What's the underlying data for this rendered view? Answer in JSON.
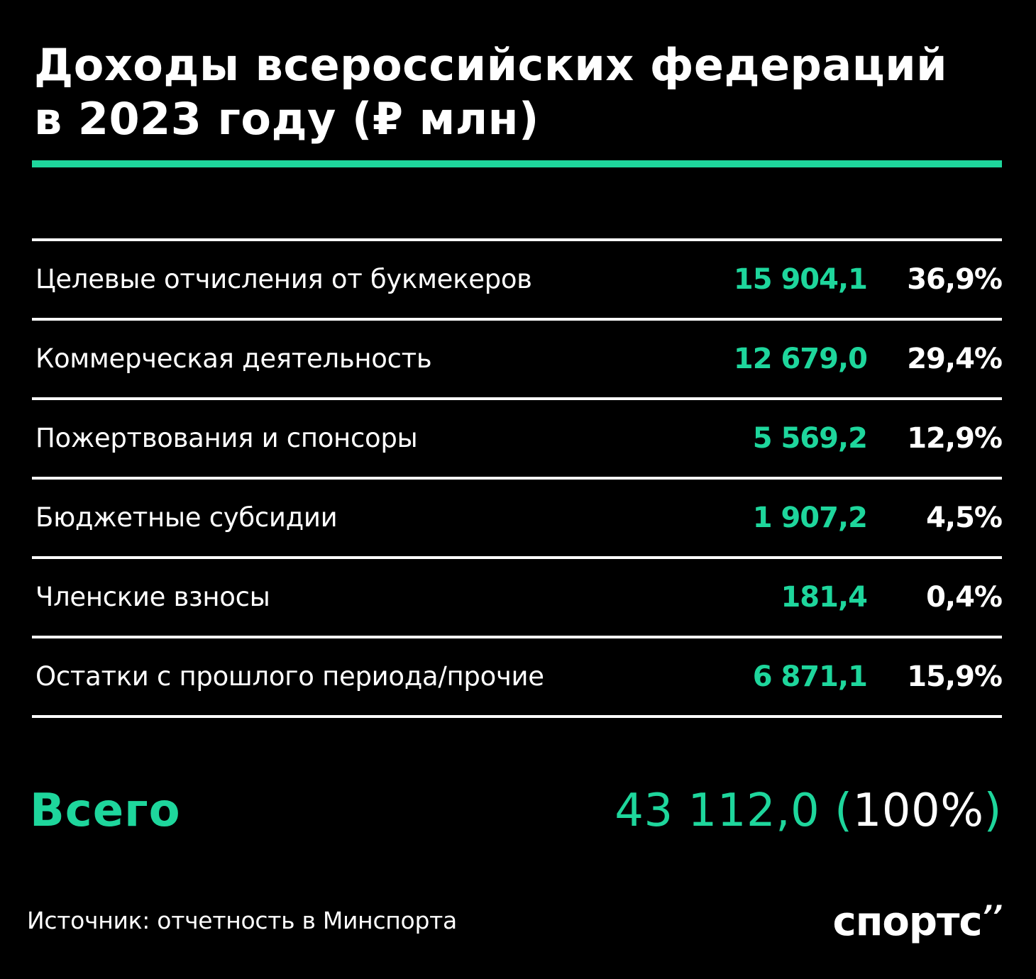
{
  "title_lines": [
    "Доходы всероссийских федераций",
    "в 2023 году (₽ млн)"
  ],
  "colors": {
    "accent": "#1ed69c",
    "background": "#000000",
    "text": "#ffffff"
  },
  "rows": [
    {
      "label": "Целевые отчисления от букмекеров",
      "value": "15 904,1",
      "percent": "36,9%"
    },
    {
      "label": "Коммерческая деятельность",
      "value": "12 679,0",
      "percent": "29,4%"
    },
    {
      "label": "Пожертвования и спонсоры",
      "value": "5 569,2",
      "percent": "12,9%"
    },
    {
      "label": "Бюджетные субсидии",
      "value": "1 907,2",
      "percent": "4,5%"
    },
    {
      "label": "Членские взносы",
      "value": "181,4",
      "percent": "0,4%"
    },
    {
      "label": "Остатки с прошлого периода/прочие",
      "value": "6 871,1",
      "percent": "15,9%"
    }
  ],
  "total": {
    "label": "Всего",
    "value": "43 112,0",
    "paren_open": "(",
    "percent": "100%",
    "paren_close": ")"
  },
  "source": "Источник: отчетность в Минспорта",
  "logo": {
    "text": "спортс",
    "mark": "’’"
  },
  "chart_data": {
    "type": "table",
    "title": "Доходы всероссийских федераций в 2023 году (₽ млн)",
    "columns": [
      "",
      "₽ млн",
      "%"
    ],
    "categories": [
      "Целевые отчисления от букмекеров",
      "Коммерческая деятельность",
      "Пожертвования и спонсоры",
      "Бюджетные субсидии",
      "Членские взносы",
      "Остатки с прошлого периода/прочие"
    ],
    "values": [
      15904.1,
      12679.0,
      5569.2,
      1907.2,
      181.4,
      6871.1
    ],
    "percents": [
      36.9,
      29.4,
      12.9,
      4.5,
      0.4,
      15.9
    ],
    "total": 43112.0,
    "total_percent": 100
  }
}
